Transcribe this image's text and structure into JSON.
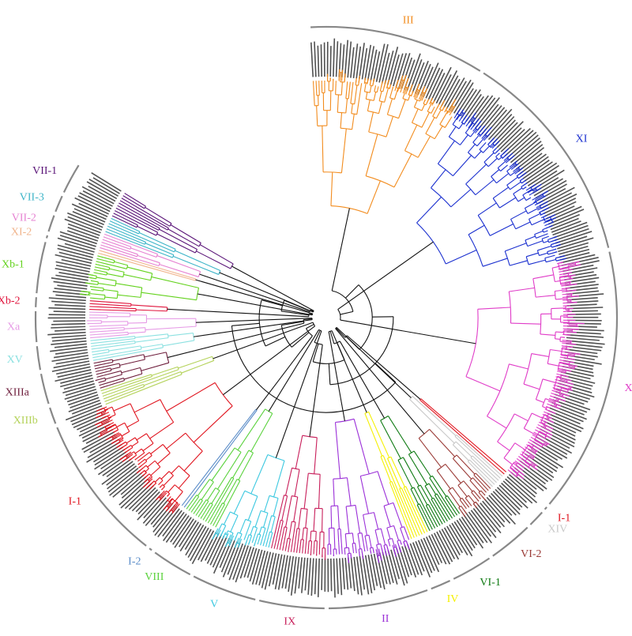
{
  "figure": {
    "type": "circular phylogenetic tree",
    "background": "#ffffff",
    "ring_color": "#888888",
    "leaf_label_color": "#333333"
  },
  "clades": [
    {
      "id": "III",
      "label": "III",
      "color": "#f28c1e",
      "leaves": 52
    },
    {
      "id": "XI",
      "label": "XI",
      "color": "#1a2fcf",
      "leaves": 64
    },
    {
      "id": "XII",
      "label": "XII",
      "color": "#e03cc8",
      "leaves": 78
    },
    {
      "id": "I-1b",
      "label": "I-1",
      "color": "#e0141e",
      "leaves": 2
    },
    {
      "id": "XIV",
      "label": "XIV",
      "color": "#c8c8c8",
      "leaves": 6
    },
    {
      "id": "VI-2",
      "label": "VI-2",
      "color": "#9a3a36",
      "leaves": 14
    },
    {
      "id": "VI-1",
      "label": "VI-1",
      "color": "#0e7a12",
      "leaves": 13
    },
    {
      "id": "IV",
      "label": "IV",
      "color": "#f5f000",
      "leaves": 7
    },
    {
      "id": "II",
      "label": "II",
      "color": "#9b30d8",
      "leaves": 30
    },
    {
      "id": "IX",
      "label": "IX",
      "color": "#c81e5a",
      "leaves": 20
    },
    {
      "id": "V",
      "label": "V",
      "color": "#3cc8e0",
      "leaves": 20
    },
    {
      "id": "VIII",
      "label": "VIII",
      "color": "#5ad23c",
      "leaves": 13
    },
    {
      "id": "I-2",
      "label": "I-2",
      "color": "#5a8cc8",
      "leaves": 2
    },
    {
      "id": "I-1a",
      "label": "I-1",
      "color": "#e0141e",
      "leaves": 44
    },
    {
      "id": "XIIIb",
      "label": "XIIIb",
      "color": "#b4d25a",
      "leaves": 6
    },
    {
      "id": "XIIIa",
      "label": "XIIIa",
      "color": "#6e1e3c",
      "leaves": 10
    },
    {
      "id": "XV",
      "label": "XV",
      "color": "#8ce1e1",
      "leaves": 8
    },
    {
      "id": "Xa",
      "label": "Xa",
      "color": "#e69be6",
      "leaves": 10
    },
    {
      "id": "Xb-2",
      "label": "Xb-2",
      "color": "#e0143c",
      "leaves": 4
    },
    {
      "id": "Xb-1",
      "label": "Xb-1",
      "color": "#64d21e",
      "leaves": 16
    },
    {
      "id": "XI-2",
      "label": "XI-2",
      "color": "#f0b48c",
      "leaves": 2
    },
    {
      "id": "VII-2",
      "label": "VII-2",
      "color": "#e682d2",
      "leaves": 6
    },
    {
      "id": "VII-3",
      "label": "VII-3",
      "color": "#3cb4c8",
      "leaves": 6
    },
    {
      "id": "VII-1",
      "label": "VII-1",
      "color": "#5a1478",
      "leaves": 10
    }
  ]
}
